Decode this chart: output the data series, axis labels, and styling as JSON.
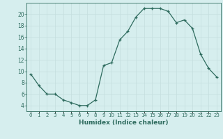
{
  "x": [
    0,
    1,
    2,
    3,
    4,
    5,
    6,
    7,
    8,
    9,
    10,
    11,
    12,
    13,
    14,
    15,
    16,
    17,
    18,
    19,
    20,
    21,
    22,
    23
  ],
  "y": [
    9.5,
    7.5,
    6.0,
    6.0,
    5.0,
    4.5,
    4.0,
    4.0,
    5.0,
    11.0,
    11.5,
    15.5,
    17.0,
    19.5,
    21.0,
    21.0,
    21.0,
    20.5,
    18.5,
    19.0,
    17.5,
    13.0,
    10.5,
    9.0
  ],
  "xlabel": "Humidex (Indice chaleur)",
  "ylim": [
    3,
    22
  ],
  "xlim": [
    -0.5,
    23.5
  ],
  "yticks": [
    4,
    6,
    8,
    10,
    12,
    14,
    16,
    18,
    20
  ],
  "xtick_labels": [
    "0",
    "1",
    "2",
    "3",
    "4",
    "5",
    "6",
    "7",
    "8",
    "9",
    "10",
    "11",
    "12",
    "13",
    "14",
    "15",
    "16",
    "17",
    "18",
    "19",
    "20",
    "21",
    "22",
    "23"
  ],
  "line_color": "#2e6b5e",
  "marker": "+",
  "bg_color": "#d6eeee",
  "grid_color": "#c4dede",
  "xlabel_fontsize": 6.5,
  "ytick_fontsize": 5.5,
  "xtick_fontsize": 5.0
}
